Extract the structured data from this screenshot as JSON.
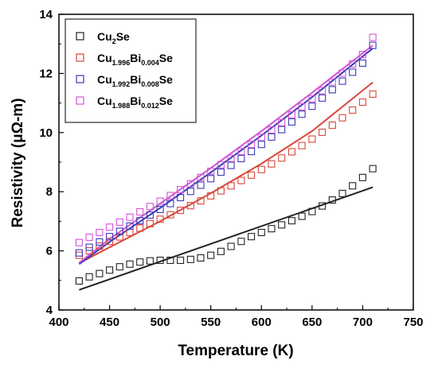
{
  "chart_data": {
    "type": "scatter",
    "xlabel": "Temperature (K)",
    "ylabel": "Resistivity (μΩ-m)",
    "xlim": [
      400,
      750
    ],
    "ylim": [
      4,
      14
    ],
    "xticks": [
      400,
      450,
      500,
      550,
      600,
      650,
      700,
      750
    ],
    "yticks": [
      4,
      6,
      8,
      10,
      12,
      14
    ],
    "legend_position": "top-left",
    "grid": false,
    "series": [
      {
        "name": "Cu2Se",
        "label_parts": [
          {
            "t": "Cu"
          },
          {
            "t": "2",
            "sub": true
          },
          {
            "t": "Se"
          }
        ],
        "color": "#222222",
        "x": [
          420,
          430,
          440,
          450,
          460,
          470,
          480,
          490,
          500,
          510,
          520,
          530,
          540,
          550,
          560,
          570,
          580,
          590,
          600,
          610,
          620,
          630,
          640,
          650,
          660,
          670,
          680,
          690,
          700,
          710
        ],
        "y": [
          4.98,
          5.12,
          5.23,
          5.35,
          5.46,
          5.55,
          5.62,
          5.66,
          5.68,
          5.68,
          5.68,
          5.71,
          5.76,
          5.85,
          5.98,
          6.15,
          6.32,
          6.48,
          6.62,
          6.75,
          6.88,
          7.02,
          7.17,
          7.33,
          7.52,
          7.72,
          7.94,
          8.2,
          8.48,
          8.78
        ],
        "fit": {
          "x": [
            420,
            710
          ],
          "y": [
            4.68,
            8.15
          ]
        }
      },
      {
        "name": "Cu1.996Bi0.004Se",
        "label_parts": [
          {
            "t": "Cu"
          },
          {
            "t": "1.996",
            "sub": true
          },
          {
            "t": "Bi"
          },
          {
            "t": "0.004",
            "sub": true
          },
          {
            "t": "Se"
          }
        ],
        "color": "#d9463a",
        "x": [
          420,
          430,
          440,
          450,
          460,
          470,
          480,
          490,
          500,
          510,
          520,
          530,
          540,
          550,
          560,
          570,
          580,
          590,
          600,
          610,
          620,
          630,
          640,
          650,
          660,
          670,
          680,
          690,
          700,
          710
        ],
        "y": [
          5.85,
          6.0,
          6.16,
          6.32,
          6.47,
          6.62,
          6.77,
          6.92,
          7.07,
          7.22,
          7.37,
          7.53,
          7.69,
          7.86,
          8.03,
          8.2,
          8.38,
          8.56,
          8.75,
          8.94,
          9.14,
          9.35,
          9.56,
          9.78,
          10.01,
          10.25,
          10.5,
          10.76,
          11.03,
          11.3
        ],
        "fit": {
          "x": [
            420,
            450,
            500,
            550,
            600,
            650,
            710
          ],
          "y": [
            5.58,
            6.12,
            7.0,
            7.95,
            8.95,
            10.05,
            11.7
          ]
        }
      },
      {
        "name": "Cu1.992Bi0.008Se",
        "label_parts": [
          {
            "t": "Cu"
          },
          {
            "t": "1.992",
            "sub": true
          },
          {
            "t": "Bi"
          },
          {
            "t": "0.008",
            "sub": true
          },
          {
            "t": "Se"
          }
        ],
        "color": "#3a3ab8",
        "x": [
          420,
          430,
          440,
          450,
          460,
          470,
          480,
          490,
          500,
          510,
          520,
          530,
          540,
          550,
          560,
          570,
          580,
          590,
          600,
          610,
          620,
          630,
          640,
          650,
          660,
          670,
          680,
          690,
          700,
          710
        ],
        "y": [
          5.93,
          6.12,
          6.3,
          6.48,
          6.66,
          6.84,
          7.02,
          7.21,
          7.4,
          7.6,
          7.8,
          8.01,
          8.22,
          8.44,
          8.66,
          8.89,
          9.12,
          9.36,
          9.6,
          9.85,
          10.1,
          10.36,
          10.62,
          10.89,
          11.17,
          11.45,
          11.74,
          12.04,
          12.35,
          12.95
        ],
        "fit": {
          "x": [
            420,
            450,
            500,
            550,
            600,
            650,
            710
          ],
          "y": [
            5.55,
            6.3,
            7.45,
            8.65,
            9.9,
            11.2,
            12.85
          ]
        }
      },
      {
        "name": "Cu1.988Bi0.012Se",
        "label_parts": [
          {
            "t": "Cu"
          },
          {
            "t": "1.988",
            "sub": true
          },
          {
            "t": "Bi"
          },
          {
            "t": "0.012",
            "sub": true
          },
          {
            "t": "Se"
          }
        ],
        "color": "#d455d4",
        "x": [
          420,
          430,
          440,
          450,
          460,
          470,
          480,
          490,
          500,
          510,
          520,
          530,
          540,
          550,
          560,
          570,
          580,
          590,
          600,
          610,
          620,
          630,
          640,
          650,
          660,
          670,
          680,
          690,
          700,
          710
        ],
        "y": [
          6.28,
          6.46,
          6.62,
          6.8,
          6.97,
          7.14,
          7.32,
          7.5,
          7.68,
          7.87,
          8.07,
          8.27,
          8.48,
          8.69,
          8.91,
          9.13,
          9.36,
          9.6,
          9.84,
          10.09,
          10.34,
          10.6,
          10.87,
          11.14,
          11.42,
          11.71,
          12.01,
          12.32,
          12.64,
          13.22
        ],
        "fit": {
          "x": [
            420,
            450,
            500,
            550,
            600,
            650,
            710
          ],
          "y": [
            5.6,
            6.4,
            7.6,
            8.8,
            10.05,
            11.35,
            12.95
          ]
        }
      }
    ]
  }
}
